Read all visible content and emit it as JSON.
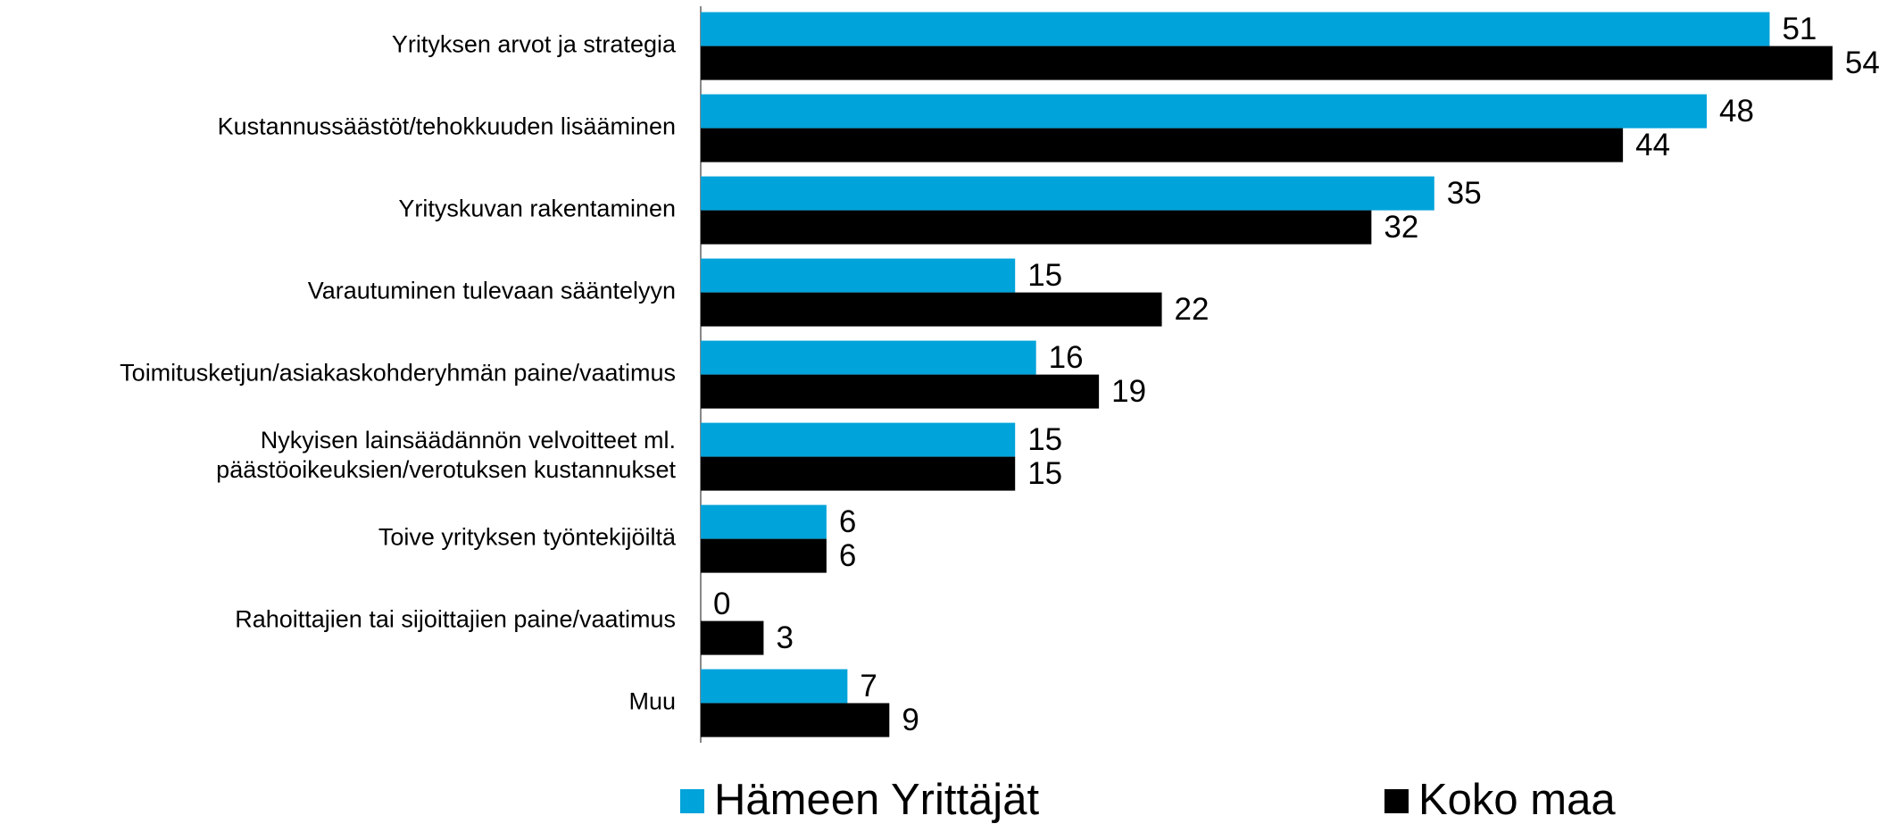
{
  "chart_data": {
    "type": "bar",
    "orientation": "horizontal",
    "categories": [
      "Yrityksen arvot ja strategia",
      "Kustannussäästöt/tehokkuuden lisääminen",
      "Yrityskuvan rakentaminen",
      "Varautuminen tulevaan sääntelyyn",
      "Toimitusketjun/asiakaskohderyhmän paine/vaatimus",
      "Nykyisen lainsäädännön velvoitteet ml.\npäästöoikeuksien/verotuksen kustannukset",
      "Toive yrityksen työntekijöiltä",
      "Rahoittajien tai sijoittajien paine/vaatimus",
      "Muu"
    ],
    "series": [
      {
        "name": "Hämeen Yrittäjät",
        "color": "#00a3da",
        "values": [
          51,
          48,
          35,
          15,
          16,
          15,
          6,
          0,
          7
        ]
      },
      {
        "name": "Koko maa",
        "color": "#000000",
        "values": [
          54,
          44,
          32,
          22,
          19,
          15,
          6,
          3,
          9
        ]
      }
    ],
    "legend": "bottom"
  }
}
